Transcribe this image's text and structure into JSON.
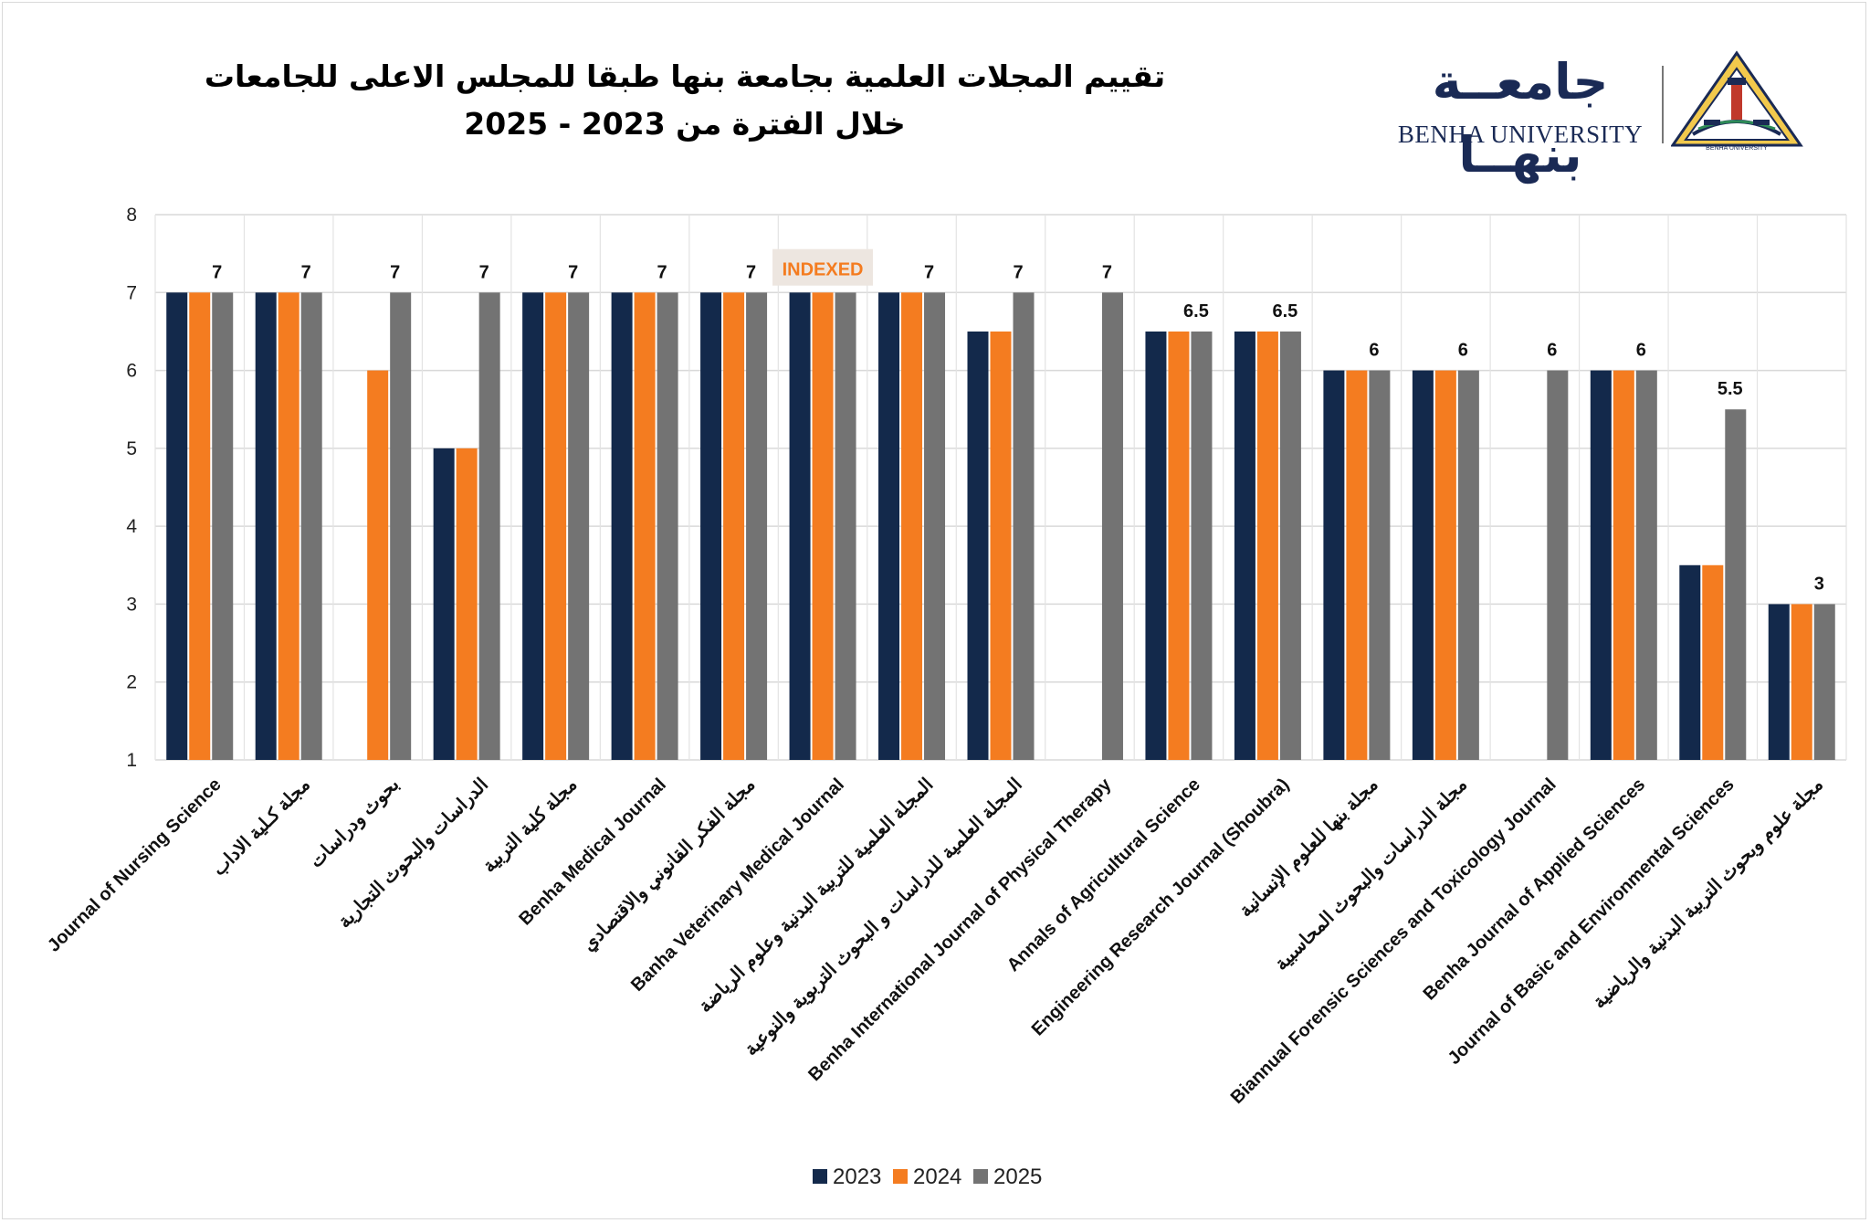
{
  "header": {
    "title_line1": "تقييم المجلات العلمية بجامعة بنها طبقا للمجلس الاعلى للجامعات",
    "title_line2": "خلال الفترة من 2023 - 2025",
    "logo_ar": "جامعــة بنهــا",
    "logo_en": "BENHA UNIVERSITY",
    "emblem_text": "BENHA UNIVERSITY"
  },
  "chart_data": {
    "type": "bar",
    "title": "تقييم المجلات العلمية بجامعة بنها طبقا للمجلس الاعلى للجامعات خلال الفترة من 2023 - 2025",
    "xlabel": "",
    "ylabel": "",
    "ylim": [
      1,
      8
    ],
    "yticks": [
      "1",
      "2",
      "3",
      "4",
      "5",
      "6",
      "7",
      "8"
    ],
    "grid": true,
    "legend": "bottom",
    "categories": [
      "Journal of Nursing Science",
      "مجلة كـلية الاداب",
      "بحوث ودراسات",
      "الدراسات والبحوث التجارية",
      "مجلة كلية التربية",
      "Benha Medical Journal",
      "مجلة الفكر القانوني والاقتصادي",
      "Banha Veterinary Medical Journal",
      "المجلة العلمية للتربية البدنية وعلوم الرياضة",
      "المجلة العلمية للدراسات و البحوث التربوية والنوعية",
      "Benha International Journal of Physical Therapy",
      "Annals of Agricultural Science",
      "Engineering Research Journal (Shoubra)",
      "مجلة بنها للعلوم الإنسانية",
      "مجلة الدراسات والبحوث المحاسبية",
      "Biannual Forensic Sciences and Toxicology Journal",
      "Benha Journal of Applied Sciences",
      "Journal of Basic and Environmental Sciences",
      "مجلة علوم وبحوث التربية البدنية والرياضية"
    ],
    "series": [
      {
        "name": "2023",
        "color": "#13294b",
        "values": [
          7,
          7,
          null,
          5,
          7,
          7,
          7,
          7,
          7,
          6.5,
          null,
          6.5,
          6.5,
          6,
          6,
          null,
          6,
          3.5,
          3
        ]
      },
      {
        "name": "2024",
        "color": "#f47c20",
        "values": [
          7,
          7,
          6,
          5,
          7,
          7,
          7,
          7,
          7,
          6.5,
          null,
          6.5,
          6.5,
          6,
          6,
          null,
          6,
          3.5,
          3
        ]
      },
      {
        "name": "2025",
        "color": "#737373",
        "values": [
          7,
          7,
          7,
          7,
          7,
          7,
          7,
          7,
          7,
          7,
          7,
          6.5,
          6.5,
          6,
          6,
          6,
          6,
          5.5,
          3
        ]
      }
    ],
    "data_labels": [
      "7",
      "7",
      "7",
      "7",
      "7",
      "7",
      "7",
      "INDEXED",
      "7",
      "7",
      "7",
      "6.5",
      "6.5",
      "6",
      "6",
      "6",
      "6",
      "5.5",
      "3"
    ],
    "indexed_color": "#f47c20",
    "indexed_bg": "#ede6e0"
  }
}
